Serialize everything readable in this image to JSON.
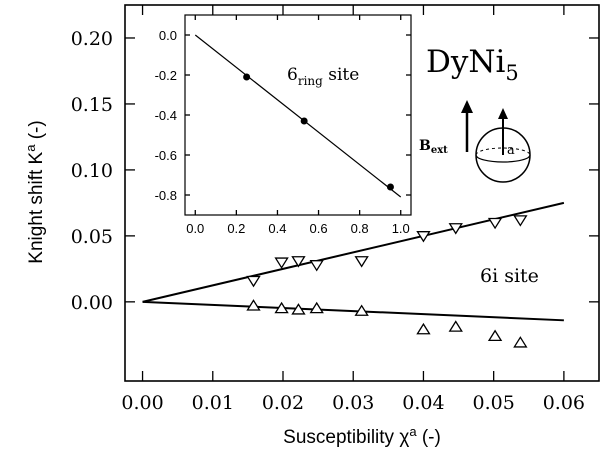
{
  "chart_data": [
    {
      "type": "scatter",
      "title": "",
      "xlabel": "Susceptibility χ",
      "xlabel_sup": "a",
      "xlabel_suffix": " (-)",
      "ylabel": "Knight shift K",
      "ylabel_sup": "a",
      "ylabel_suffix": " (-)",
      "xlim": [
        -0.0025,
        0.065
      ],
      "ylim": [
        -0.06,
        0.225
      ],
      "xticks": [
        0.0,
        0.01,
        0.02,
        0.03,
        0.04,
        0.05,
        0.06
      ],
      "xtick_labels": [
        "0.00",
        "0.01",
        "0.02",
        "0.03",
        "0.04",
        "0.05",
        "0.06"
      ],
      "yticks": [
        0.0,
        0.05,
        0.1,
        0.15,
        0.2
      ],
      "ytick_labels": [
        "0.00",
        "0.05",
        "0.10",
        "0.15",
        "0.20"
      ],
      "grid": false,
      "series": [
        {
          "marker": "triangle-down",
          "x": [
            0.0158,
            0.0198,
            0.0222,
            0.0248,
            0.0312,
            0.04,
            0.0446,
            0.0502,
            0.0538
          ],
          "y": [
            0.016,
            0.03,
            0.031,
            0.028,
            0.031,
            0.05,
            0.056,
            0.06,
            0.062
          ]
        },
        {
          "marker": "triangle-up",
          "x": [
            0.0158,
            0.0198,
            0.0222,
            0.0248,
            0.0312,
            0.04,
            0.0446,
            0.0502,
            0.0538
          ],
          "y": [
            -0.003,
            -0.005,
            -0.006,
            -0.005,
            -0.007,
            -0.021,
            -0.019,
            -0.026,
            -0.031
          ]
        }
      ],
      "fit_lines": [
        {
          "x": [
            0.0,
            0.06
          ],
          "y": [
            0.0,
            0.075
          ]
        },
        {
          "x": [
            0.0,
            0.06
          ],
          "y": [
            0.0,
            -0.014
          ]
        }
      ],
      "annotations": {
        "compound": "DyNi",
        "compound_sub": "5",
        "site_6i": "6i site",
        "field_label": "B",
        "field_sub": "ext",
        "axis_label": "a"
      }
    },
    {
      "type": "scatter",
      "title": "",
      "xlim": [
        -0.05,
        1.05
      ],
      "ylim": [
        -0.9,
        0.1
      ],
      "xticks": [
        0.0,
        0.2,
        0.4,
        0.6,
        0.8,
        1.0
      ],
      "xtick_labels": [
        "0.0",
        "0.2",
        "0.4",
        "0.6",
        "0.8",
        "1.0"
      ],
      "yticks": [
        0.0,
        -0.2,
        -0.4,
        -0.6,
        -0.8
      ],
      "ytick_labels": [
        "0.0",
        "-0.2",
        "-0.4",
        "-0.6",
        "-0.8"
      ],
      "grid": false,
      "series": [
        {
          "marker": "dot",
          "x": [
            0.25,
            0.53,
            0.95
          ],
          "y": [
            -0.21,
            -0.43,
            -0.76
          ]
        }
      ],
      "fit_lines": [
        {
          "x": [
            0.0,
            1.0
          ],
          "y": [
            0.0,
            -0.81
          ]
        }
      ],
      "annotations": {
        "site_main": "6",
        "site_sub": "ring",
        "site_rest": " site"
      }
    }
  ]
}
